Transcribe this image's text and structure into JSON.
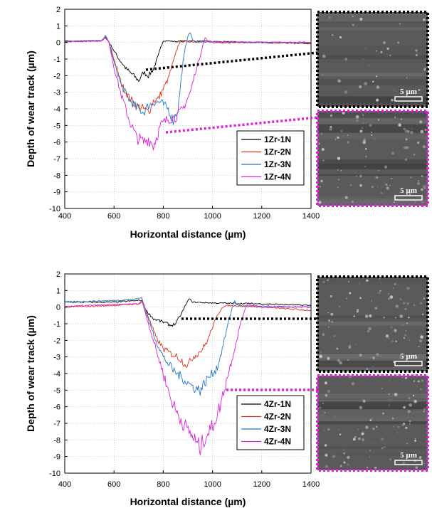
{
  "chart_data": [
    {
      "type": "line",
      "xlabel": "Horizontal distance (µm)",
      "ylabel": "Depth of wear track (µm)",
      "xlim": [
        400,
        1400
      ],
      "ylim": [
        -10,
        2
      ],
      "xticks": [
        400,
        600,
        800,
        1000,
        1200,
        1400
      ],
      "yticks": [
        2,
        1,
        0,
        -1,
        -2,
        -3,
        -4,
        -5,
        -6,
        -7,
        -8,
        -9,
        -10
      ],
      "grid": "dotted",
      "legend_position": "bottom-right",
      "series": [
        {
          "name": "1Zr-1N",
          "color": "#000000",
          "x": [
            400,
            550,
            565,
            580,
            600,
            620,
            650,
            680,
            700,
            720,
            740,
            760,
            780,
            790,
            800,
            820,
            850,
            900,
            1000,
            1200,
            1400
          ],
          "y": [
            0.05,
            0.1,
            0.3,
            0.0,
            -0.5,
            -1.0,
            -1.6,
            -2.0,
            -2.3,
            -1.8,
            -2.0,
            -1.6,
            -0.8,
            -0.3,
            0.1,
            0.1,
            0.05,
            0.1,
            0.05,
            0.0,
            -0.05
          ]
        },
        {
          "name": "1Zr-2N",
          "color": "#e0301e",
          "x": [
            400,
            550,
            565,
            580,
            600,
            630,
            660,
            690,
            720,
            740,
            760,
            780,
            800,
            820,
            840,
            860,
            870,
            880,
            900,
            1000,
            1200,
            1400
          ],
          "y": [
            0.05,
            0.1,
            0.35,
            0.0,
            -1.0,
            -2.5,
            -3.3,
            -3.8,
            -4.0,
            -4.2,
            -3.5,
            -3.4,
            -2.8,
            -2.2,
            -1.2,
            -0.2,
            0.1,
            0.05,
            0.05,
            0.0,
            0.0,
            -0.05
          ]
        },
        {
          "name": "1Zr-3N",
          "color": "#1f78c8",
          "x": [
            400,
            550,
            565,
            580,
            600,
            630,
            660,
            690,
            720,
            740,
            760,
            790,
            820,
            840,
            860,
            870,
            880,
            890,
            900,
            910,
            920,
            940,
            1000,
            1200,
            1400
          ],
          "y": [
            0.1,
            0.1,
            0.4,
            0.0,
            -1.2,
            -2.6,
            -3.4,
            -3.9,
            -4.2,
            -3.8,
            -3.6,
            -3.6,
            -4.0,
            -4.7,
            -4.0,
            -2.6,
            -1.2,
            -0.3,
            0.4,
            0.6,
            0.1,
            0.05,
            0.05,
            0.0,
            0.0
          ]
        },
        {
          "name": "1Zr-4N",
          "color": "#e020d8",
          "x": [
            400,
            550,
            565,
            580,
            600,
            630,
            660,
            690,
            720,
            740,
            760,
            790,
            820,
            850,
            880,
            910,
            930,
            950,
            960,
            970,
            980,
            990,
            1000,
            1200,
            1400
          ],
          "y": [
            0.05,
            0.1,
            0.3,
            0.0,
            -1.5,
            -3.2,
            -4.6,
            -5.7,
            -6.0,
            -5.8,
            -6.2,
            -5.0,
            -4.6,
            -4.5,
            -4.0,
            -3.0,
            -1.8,
            -0.8,
            -0.2,
            0.3,
            0.1,
            0.05,
            0.05,
            0.0,
            0.0
          ]
        }
      ],
      "insets": [
        {
          "scale_bar": "5 µm",
          "border_color": "#000000"
        },
        {
          "scale_bar": "5 µm",
          "border_color": "#e020d8"
        }
      ]
    },
    {
      "type": "line",
      "xlabel": "Horizontal distance (µm)",
      "ylabel": "Depth of wear track (µm)",
      "xlim": [
        400,
        1400
      ],
      "ylim": [
        -10,
        2
      ],
      "xticks": [
        400,
        600,
        800,
        1000,
        1200,
        1400
      ],
      "yticks": [
        2,
        1,
        0,
        -1,
        -2,
        -3,
        -4,
        -5,
        -6,
        -7,
        -8,
        -9,
        -10
      ],
      "grid": "dotted",
      "legend_position": "bottom-right",
      "series": [
        {
          "name": "4Zr-1N",
          "color": "#000000",
          "x": [
            400,
            500,
            600,
            700,
            715,
            730,
            760,
            800,
            830,
            850,
            870,
            890,
            905,
            920,
            1000,
            1200,
            1400
          ],
          "y": [
            0.3,
            0.3,
            0.3,
            0.4,
            0.4,
            -0.2,
            -0.7,
            -0.9,
            -1.1,
            -1.0,
            -0.5,
            0.1,
            0.5,
            0.3,
            0.25,
            0.2,
            0.1
          ]
        },
        {
          "name": "4Zr-2N",
          "color": "#e0301e",
          "x": [
            400,
            500,
            600,
            700,
            715,
            740,
            770,
            800,
            830,
            860,
            880,
            900,
            920,
            940,
            960,
            980,
            1000,
            1020,
            1040,
            1060,
            1200,
            1400
          ],
          "y": [
            0.0,
            0.05,
            0.1,
            0.2,
            0.4,
            -0.6,
            -1.8,
            -2.5,
            -2.8,
            -3.0,
            -3.3,
            -3.5,
            -3.0,
            -2.8,
            -2.5,
            -2.0,
            -1.2,
            -0.5,
            0.0,
            0.1,
            0.0,
            -0.2
          ]
        },
        {
          "name": "4Zr-3N",
          "color": "#1f78c8",
          "x": [
            400,
            500,
            600,
            700,
            712,
            740,
            770,
            800,
            840,
            880,
            920,
            950,
            980,
            1000,
            1020,
            1040,
            1060,
            1080,
            1090,
            1100,
            1200,
            1400
          ],
          "y": [
            0.3,
            0.35,
            0.4,
            0.5,
            0.6,
            -0.8,
            -2.0,
            -3.0,
            -3.8,
            -4.3,
            -4.8,
            -5.0,
            -4.3,
            -4.0,
            -3.6,
            -2.5,
            -1.2,
            0.0,
            0.4,
            0.1,
            0.05,
            0.0
          ]
        },
        {
          "name": "4Zr-4N",
          "color": "#e020d8",
          "x": [
            400,
            500,
            600,
            700,
            715,
            740,
            770,
            800,
            830,
            860,
            890,
            920,
            940,
            950,
            970,
            1000,
            1030,
            1060,
            1090,
            1110,
            1130,
            1145,
            1160,
            1200,
            1400
          ],
          "y": [
            0.05,
            0.1,
            0.15,
            0.2,
            0.3,
            -1.0,
            -2.5,
            -4.0,
            -5.5,
            -6.5,
            -7.2,
            -7.8,
            -8.3,
            -8.5,
            -7.8,
            -7.2,
            -6.0,
            -4.2,
            -2.5,
            -1.2,
            -0.2,
            0.3,
            0.1,
            0.0,
            0.0
          ]
        }
      ],
      "insets": [
        {
          "scale_bar": "5 µm",
          "border_color": "#000000"
        },
        {
          "scale_bar": "5 µm",
          "border_color": "#e020d8"
        }
      ]
    }
  ]
}
